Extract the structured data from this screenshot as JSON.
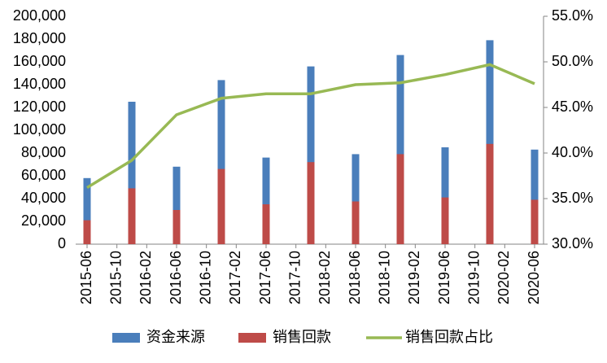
{
  "chart_data": {
    "type": "bar",
    "x": [
      "2015-06",
      "2015-12",
      "2016-06",
      "2016-12",
      "2017-06",
      "2017-12",
      "2018-06",
      "2018-12",
      "2019-06",
      "2019-12",
      "2020-06"
    ],
    "series": [
      {
        "name": "资金来源",
        "color": "#4a7ebb",
        "type": "bar",
        "values": [
          58000,
          125000,
          68000,
          144000,
          76000,
          156000,
          79000,
          166000,
          85000,
          179000,
          83000
        ]
      },
      {
        "name": "销售回款",
        "color": "#be4b48",
        "type": "bar",
        "values": [
          21000,
          49000,
          30000,
          66000,
          35000,
          72000,
          37500,
          79000,
          41000,
          88000,
          39000
        ]
      },
      {
        "name": "销售回款占比",
        "color": "#98b954",
        "type": "line",
        "axis": "y2",
        "values": [
          36.2,
          39.2,
          44.2,
          46.0,
          46.5,
          46.5,
          47.5,
          47.7,
          48.6,
          49.7,
          47.6
        ]
      }
    ],
    "xticks": [
      "2015-06",
      "2015-10",
      "2016-02",
      "2016-06",
      "2016-10",
      "2017-02",
      "2017-06",
      "2017-10",
      "2018-02",
      "2018-06",
      "2018-10",
      "2019-02",
      "2019-06",
      "2019-10",
      "2020-02",
      "2020-06"
    ],
    "ylim": [
      0,
      200000
    ],
    "yticks": [
      0,
      {
        "value": 20000,
        "label": "20,000"
      },
      {
        "value": 40000,
        "label": "40,000"
      },
      {
        "value": 60000,
        "label": "60,000"
      },
      {
        "value": 80000,
        "label": "80,000"
      },
      {
        "value": 100000,
        "label": "100,000"
      },
      {
        "value": 120000,
        "label": "120,000"
      },
      {
        "value": 140000,
        "label": "140,000"
      },
      {
        "value": 160000,
        "label": "160,000"
      },
      {
        "value": 180000,
        "label": "180,000"
      },
      {
        "value": 200000,
        "label": "200,000"
      }
    ],
    "y2lim": [
      30,
      55
    ],
    "y2ticks": [
      {
        "value": 30,
        "label": "30.0%"
      },
      {
        "value": 35,
        "label": "35.0%"
      },
      {
        "value": 40,
        "label": "40.0%"
      },
      {
        "value": 45,
        "label": "45.0%"
      },
      {
        "value": 50,
        "label": "50.0%"
      },
      {
        "value": 55,
        "label": "55.0%"
      }
    ],
    "legend": "bottom"
  }
}
